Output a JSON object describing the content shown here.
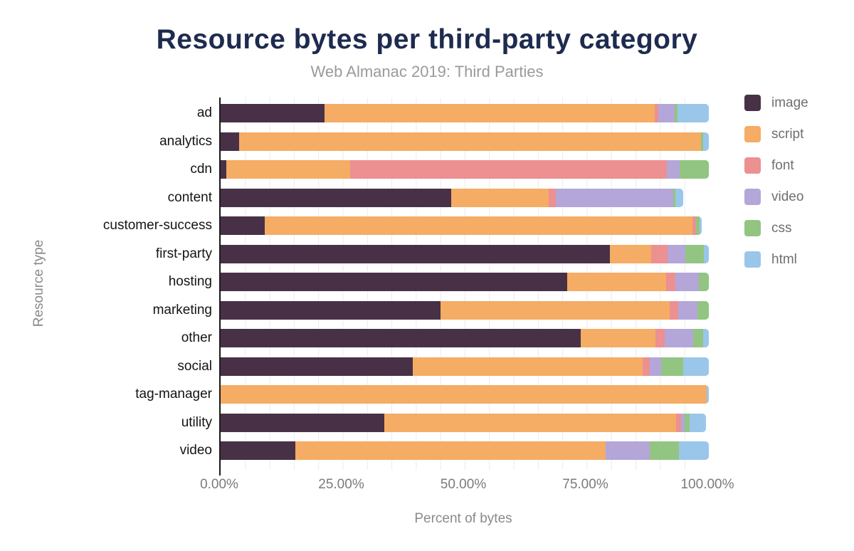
{
  "header": {
    "title": "Resource bytes per third-party category",
    "subtitle": "Web Almanac 2019: Third Parties"
  },
  "chart_data": {
    "type": "bar",
    "orientation": "horizontal",
    "stacked": true,
    "title": "Resource bytes per third-party category",
    "subtitle": "Web Almanac 2019: Third Parties",
    "xlabel": "Percent of bytes",
    "ylabel": "Resource type",
    "xlim": [
      0,
      100
    ],
    "x_tick_values": [
      0,
      25,
      50,
      75,
      100
    ],
    "x_tick_labels": [
      "0.00%",
      "25.00%",
      "50.00%",
      "75.00%",
      "100.00%"
    ],
    "grid": "vertical gridlines every 5%",
    "legend_position": "right",
    "categories": [
      "ad",
      "analytics",
      "cdn",
      "content",
      "customer-success",
      "first-party",
      "hosting",
      "marketing",
      "other",
      "social",
      "tag-manager",
      "utility",
      "video"
    ],
    "series": [
      {
        "name": "image",
        "color": "#483146",
        "values": [
          21.3,
          3.8,
          1.1,
          47.2,
          9.1,
          79.7,
          71.0,
          45.0,
          73.8,
          39.4,
          0,
          33.6,
          15.3
        ]
      },
      {
        "name": "script",
        "color": "#F5AC64",
        "values": [
          67.6,
          94.6,
          25.4,
          20.0,
          87.5,
          8.5,
          20.3,
          47.0,
          15.2,
          47.1,
          99.5,
          59.7,
          63.5
        ]
      },
      {
        "name": "font",
        "color": "#EC9092",
        "values": [
          0.7,
          0,
          64.9,
          1.4,
          0.8,
          3.3,
          1.8,
          1.8,
          1.9,
          1.4,
          0,
          1.0,
          0
        ]
      },
      {
        "name": "video",
        "color": "#B4A6D9",
        "values": [
          3.4,
          0,
          2.7,
          24.1,
          0,
          3.7,
          4.9,
          3.9,
          5.9,
          2.4,
          0,
          0.7,
          9.1
        ]
      },
      {
        "name": "css",
        "color": "#92C582",
        "values": [
          0.6,
          0.4,
          5.9,
          0.4,
          0.7,
          3.8,
          2.0,
          2.3,
          2.1,
          4.5,
          0,
          1.1,
          6.0
        ]
      },
      {
        "name": "html",
        "color": "#9AC6EA",
        "values": [
          6.4,
          1.2,
          0,
          1.7,
          0.5,
          1.0,
          0,
          0,
          1.1,
          5.2,
          0.5,
          3.3,
          6.1
        ]
      }
    ]
  },
  "colors": {
    "title_text": "#1E2B4F",
    "subtitle_text": "#9A9A9A",
    "tick_text": "#7B7B7B",
    "axis_title_text": "#8A8A8A",
    "category_text": "#141414",
    "legend_text": "#6F6F6F",
    "axis_line": "#1C1C1C",
    "gridline": "#EBEBF1",
    "background": "#FFFFFF"
  }
}
